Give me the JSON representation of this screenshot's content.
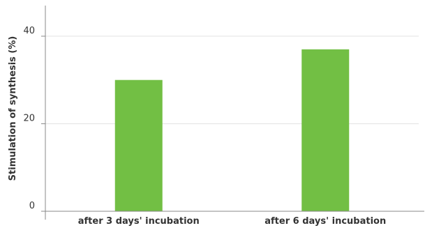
{
  "chart_data": {
    "type": "bar",
    "categories": [
      "after 3 days' incubation",
      "after 6 days' incubation"
    ],
    "values": [
      30,
      37
    ],
    "title": "",
    "xlabel": "",
    "ylabel": "Stimulation of synthesis (%)",
    "ylim": [
      0,
      47
    ],
    "yticks": [
      0,
      20,
      40
    ],
    "grid": true,
    "legend": "none",
    "bar_color": "#72bf44",
    "grid_color": "#e3e3e3",
    "axis_color": "#888888"
  }
}
